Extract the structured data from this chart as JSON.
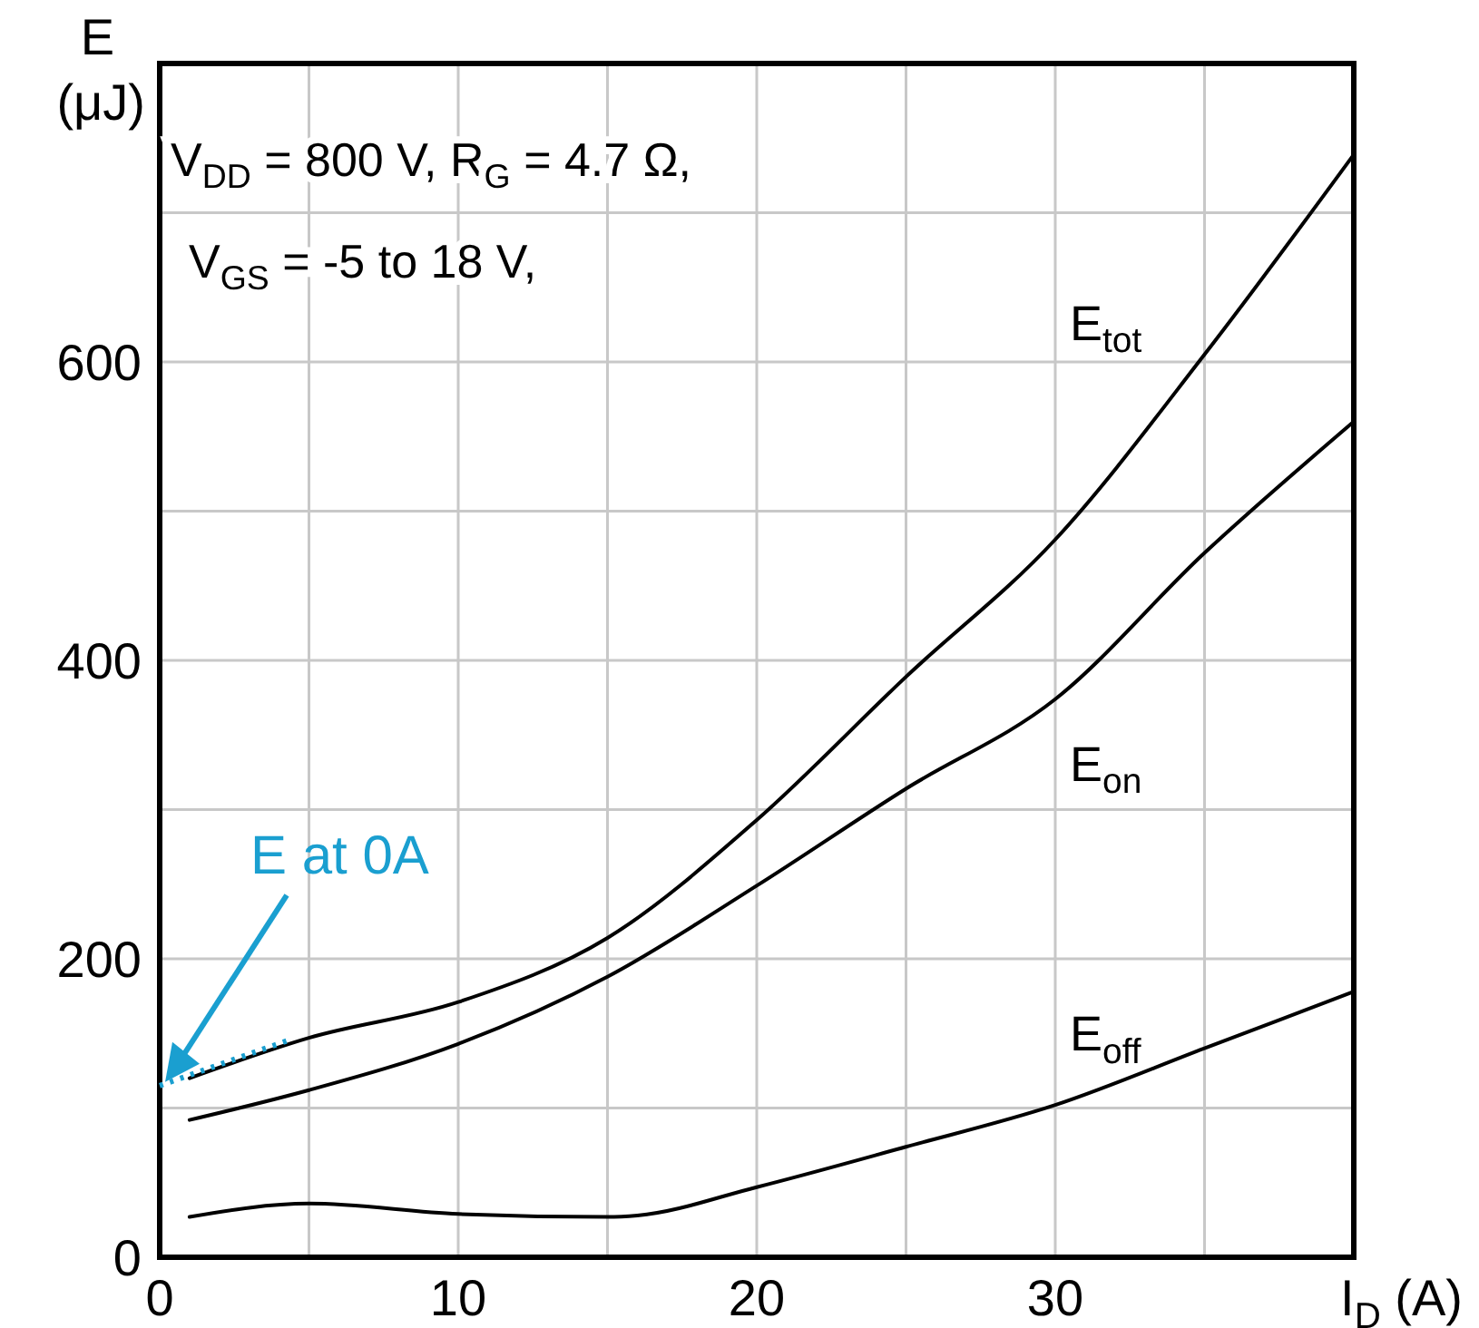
{
  "chart_data": {
    "type": "line",
    "xlabel": "I$_{D}$ (A)",
    "ylabel": "E (μJ)",
    "xlim": [
      0,
      40
    ],
    "ylim": [
      0,
      800
    ],
    "xticks": [
      0,
      {
        "value": 5,
        "label": null
      },
      10,
      {
        "value": 15,
        "label": null
      },
      20,
      {
        "value": 25,
        "label": null
      },
      30,
      {
        "value": 35,
        "label": null
      }
    ],
    "yticks": [
      0,
      {
        "value": 100,
        "label": null
      },
      200,
      {
        "value": 300,
        "label": null
      },
      400,
      {
        "value": 500,
        "label": null
      },
      600,
      {
        "value": 700,
        "label": null
      }
    ],
    "grid": true,
    "line_style": "solid",
    "series": [
      {
        "name": "E$_{tot}$",
        "color": "#000000",
        "x": [
          1,
          5,
          10,
          15,
          20,
          25,
          30,
          35,
          40
        ],
        "values": [
          120,
          147,
          171,
          214,
          293,
          389,
          481,
          605,
          739
        ]
      },
      {
        "name": "E$_{on}$",
        "color": "#000000",
        "x": [
          1,
          5,
          10,
          15,
          20,
          25,
          30,
          35,
          40
        ],
        "values": [
          92,
          112,
          143,
          188,
          249,
          314,
          374,
          472,
          560
        ]
      },
      {
        "name": "E$_{off}$",
        "color": "#000000",
        "x": [
          1,
          5,
          10,
          15,
          16,
          20,
          25,
          30,
          35,
          40
        ],
        "values": [
          27,
          36,
          29,
          27,
          28,
          47,
          74,
          102,
          140,
          178
        ]
      },
      {
        "color": "#1a9fd0",
        "line_style": "dotted",
        "x": [
          0,
          4.4
        ],
        "values": [
          115,
          146
        ]
      }
    ],
    "annotations": [
      "V$_{DD}$ = 800 V, R$_{G}$ = 4.7 Ω,",
      "V$_{GS}$ = -5 to 18 V,",
      "E at 0A"
    ]
  }
}
